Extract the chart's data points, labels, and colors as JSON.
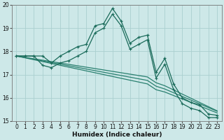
{
  "xlabel": "Humidex (Indice chaleur)",
  "xlim": [
    -0.5,
    23.5
  ],
  "ylim": [
    15,
    20
  ],
  "yticks": [
    15,
    16,
    17,
    18,
    19,
    20
  ],
  "xticks": [
    0,
    1,
    2,
    3,
    4,
    5,
    6,
    7,
    8,
    9,
    10,
    11,
    12,
    13,
    14,
    15,
    16,
    17,
    18,
    19,
    20,
    21,
    22,
    23
  ],
  "bg_color": "#cde8e8",
  "grid_color": "#aacfcf",
  "line_color_dark": "#1a6b5a",
  "line_color_mid": "#2a8070",
  "series_main": [
    17.8,
    17.8,
    17.8,
    17.8,
    17.5,
    17.8,
    18.0,
    18.2,
    18.3,
    19.1,
    19.2,
    19.85,
    19.3,
    18.35,
    18.6,
    18.7,
    17.1,
    17.7,
    16.6,
    16.0,
    15.8,
    15.7,
    15.3,
    15.25
  ],
  "series2": [
    17.8,
    17.8,
    17.8,
    17.4,
    17.3,
    17.5,
    17.6,
    17.8,
    18.0,
    18.8,
    19.0,
    19.6,
    19.1,
    18.1,
    18.3,
    18.5,
    16.85,
    17.45,
    16.35,
    15.75,
    15.55,
    15.45,
    15.15,
    15.15
  ],
  "diag1": [
    17.8,
    17.72,
    17.64,
    17.56,
    17.48,
    17.4,
    17.32,
    17.24,
    17.16,
    17.08,
    17.0,
    16.92,
    16.84,
    16.76,
    16.68,
    16.6,
    16.35,
    16.25,
    16.1,
    15.95,
    15.8,
    15.65,
    15.5,
    15.35
  ],
  "diag2": [
    17.8,
    17.73,
    17.66,
    17.59,
    17.52,
    17.45,
    17.38,
    17.31,
    17.24,
    17.17,
    17.1,
    17.03,
    16.96,
    16.89,
    16.82,
    16.75,
    16.5,
    16.38,
    16.22,
    16.06,
    15.9,
    15.74,
    15.58,
    15.42
  ],
  "diag3": [
    17.8,
    17.74,
    17.68,
    17.62,
    17.56,
    17.5,
    17.44,
    17.38,
    17.32,
    17.26,
    17.2,
    17.14,
    17.08,
    17.02,
    16.96,
    16.9,
    16.65,
    16.52,
    16.34,
    16.16,
    15.98,
    15.8,
    15.62,
    15.44
  ]
}
